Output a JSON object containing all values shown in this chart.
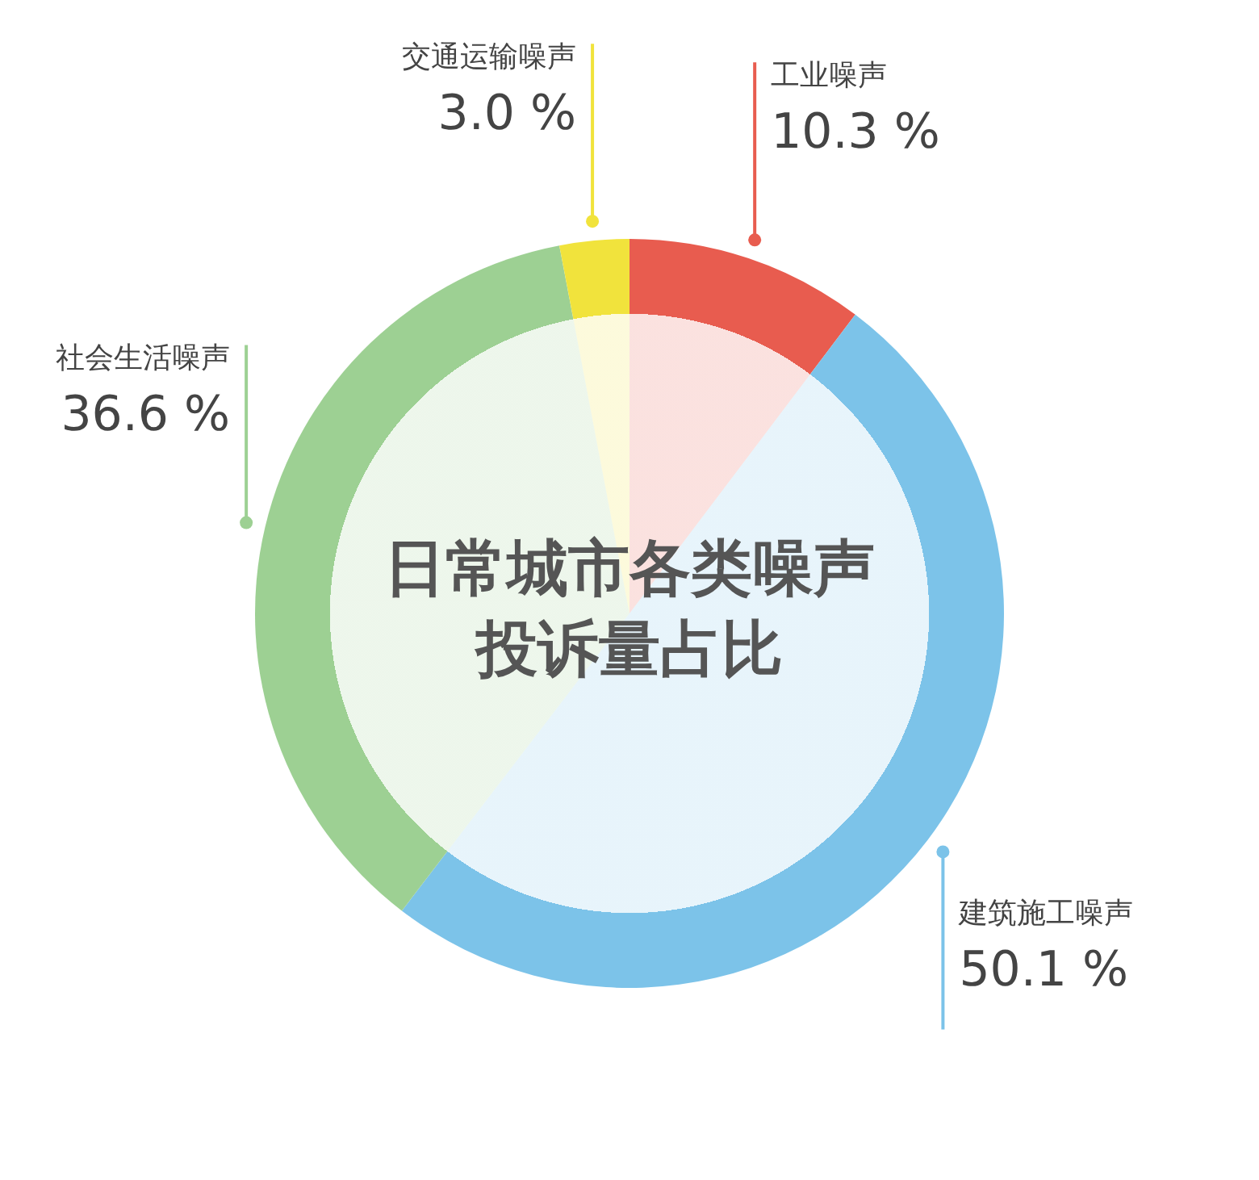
{
  "chart_data": {
    "type": "pie",
    "title": "日常城市各类噪声投诉量占比",
    "categories": [
      "工业噪声",
      "建筑施工噪声",
      "社会生活噪声",
      "交通运输噪声"
    ],
    "values": [
      10.3,
      50.1,
      36.6,
      3.0
    ],
    "value_labels": [
      "10.3 %",
      "50.1 %",
      "36.6 %",
      "3.0 %"
    ],
    "colors": [
      "#e85c4f",
      "#7cc3e9",
      "#9dd093",
      "#f1e33c"
    ],
    "legend": false
  }
}
